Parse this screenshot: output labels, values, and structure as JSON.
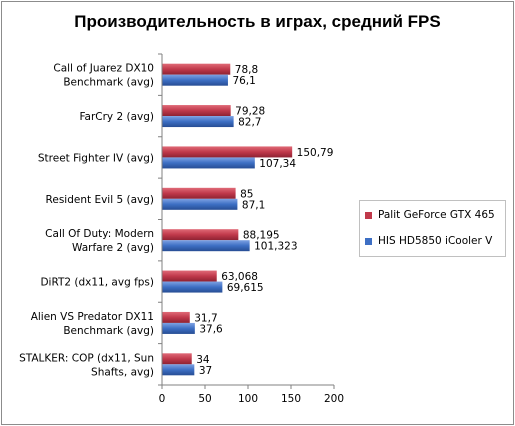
{
  "chart_data": {
    "type": "bar",
    "orientation": "horizontal",
    "title": "Производительность в играх, средний FPS",
    "xlabel": "",
    "ylabel": "",
    "xlim": [
      0,
      200
    ],
    "xticks": [
      0,
      50,
      100,
      150,
      200
    ],
    "grid": false,
    "legend_position": "right",
    "categories": [
      [
        "Call of Juarez DX10",
        "Benchmark (avg)"
      ],
      [
        "FarCry 2 (avg)"
      ],
      [
        "Street Fighter IV (avg)"
      ],
      [
        "Resident Evil 5 (avg)"
      ],
      [
        "Call Of Duty: Modern",
        "Warfare 2 (avg)"
      ],
      [
        "DiRT2 (dx11, avg fps)"
      ],
      [
        "Alien VS Predator DX11",
        "Benchmark (avg)"
      ],
      [
        "STALKER: COP (dx11, Sun",
        "Shafts, avg)"
      ]
    ],
    "series": [
      {
        "name": "Palit GeForce GTX 465",
        "color": "#c0394b",
        "values": [
          78.8,
          79.28,
          150.79,
          85,
          88.195,
          63.068,
          31.7,
          34
        ],
        "labels": [
          "78,8",
          "79,28",
          "150,79",
          "85",
          "88,195",
          "63,068",
          "31,7",
          "34"
        ]
      },
      {
        "name": "HIS HD5850 iCooler V",
        "color": "#3d6fc4",
        "values": [
          76.1,
          82.7,
          107.34,
          87.1,
          101.323,
          69.615,
          37.6,
          37
        ],
        "labels": [
          "76,1",
          "82,7",
          "107,34",
          "87,1",
          "101,323",
          "69,615",
          "37,6",
          "37"
        ]
      }
    ]
  }
}
